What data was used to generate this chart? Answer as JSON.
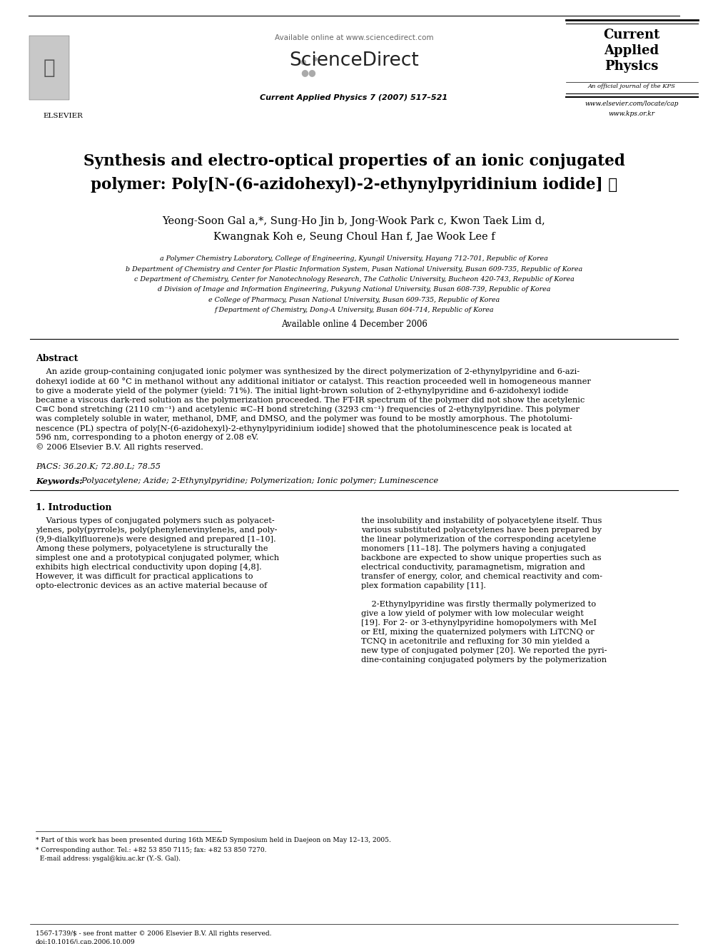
{
  "page_bg": "#ffffff",
  "available_online_header": "Available online at www.sciencedirect.com",
  "sciencedirect_text": "ScienceDirect",
  "journal_cite": "Current Applied Physics 7 (2007) 517–521",
  "journal_box_line1": "Current",
  "journal_box_line2": "Applied",
  "journal_box_line3": "Physics",
  "journal_box_subtitle": "An official journal of the KPS",
  "journal_box_url1": "www.elsevier.com/locate/cap",
  "journal_box_url2": "www.kps.or.kr",
  "elsevier_label": "ELSEVIER",
  "title_line1": "Synthesis and electro-optical properties of an ionic conjugated",
  "title_line2": "polymer: Poly[N-(6-azidohexyl)-2-ethynylpyridinium iodide] ☆",
  "authors_line1": "Yeong-Soon Gal a,*, Sung-Ho Jin b, Jong-Wook Park c, Kwon Taek Lim d,",
  "authors_line2": "Kwangnak Koh e, Seung Choul Han f, Jae Wook Lee f",
  "aff_a": "a Polymer Chemistry Laboratory, College of Engineering, Kyungil University, Hayang 712-701, Republic of Korea",
  "aff_b": "b Department of Chemistry and Center for Plastic Information System, Pusan National University, Busan 609-735, Republic of Korea",
  "aff_c": "c Department of Chemistry, Center for Nanotechnology Research, The Catholic University, Bucheon 420-743, Republic of Korea",
  "aff_d": "d Division of Image and Information Engineering, Pukyung National University, Busan 608-739, Republic of Korea",
  "aff_e": "e College of Pharmacy, Pusan National University, Busan 609-735, Republic of Korea",
  "aff_f": "f Department of Chemistry, Dong-A University, Busan 604-714, Republic of Korea",
  "available_date": "Available online 4 December 2006",
  "abstract_label": "Abstract",
  "abstract_lines": [
    "    An azide group-containing conjugated ionic polymer was synthesized by the direct polymerization of 2-ethynylpyridine and 6-azi-",
    "dohexyl iodide at 60 °C in methanol without any additional initiator or catalyst. This reaction proceeded well in homogeneous manner",
    "to give a moderate yield of the polymer (yield: 71%). The initial light-brown solution of 2-ethynylpyridine and 6-azidohexyl iodide",
    "became a viscous dark-red solution as the polymerization proceeded. The FT-IR spectrum of the polymer did not show the acetylenic",
    "C≡C bond stretching (2110 cm⁻¹) and acetylenic ≡C–H bond stretching (3293 cm⁻¹) frequencies of 2-ethynylpyridine. This polymer",
    "was completely soluble in water, methanol, DMF, and DMSO, and the polymer was found to be mostly amorphous. The photolumi-",
    "nescence (PL) spectra of poly[N-(6-azidohexyl)-2-ethynylpyridinium iodide] showed that the photoluminescence peak is located at",
    "596 nm, corresponding to a photon energy of 2.08 eV.",
    "© 2006 Elsevier B.V. All rights reserved."
  ],
  "pacs_line": "PACS: 36.20.K; 72.80.L; 78.55",
  "keywords_label": "Keywords:",
  "keywords_text": "  Polyacetylene; Azide; 2-Ethynylpyridine; Polymerization; Ionic polymer; Luminescence",
  "intro_title": "1. Introduction",
  "col1_lines": [
    "    Various types of conjugated polymers such as polyacet-",
    "ylenes, poly(pyrrole)s, poly(phenylenevinylene)s, and poly-",
    "(9,9-dialkylfluorene)s were designed and prepared [1–10].",
    "Among these polymers, polyacetylene is structurally the",
    "simplest one and a prototypical conjugated polymer, which",
    "exhibits high electrical conductivity upon doping [4,8].",
    "However, it was difficult for practical applications to",
    "opto-electronic devices as an active material because of"
  ],
  "col2_lines": [
    "the insolubility and instability of polyacetylene itself. Thus",
    "various substituted polyacetylenes have been prepared by",
    "the linear polymerization of the corresponding acetylene",
    "monomers [11–18]. The polymers having a conjugated",
    "backbone are expected to show unique properties such as",
    "electrical conductivity, paramagnetism, migration and",
    "transfer of energy, color, and chemical reactivity and com-",
    "plex formation capability [11].",
    "",
    "    2-Ethynylpyridine was firstly thermally polymerized to",
    "give a low yield of polymer with low molecular weight",
    "[19]. For 2- or 3-ethynylpyridine homopolymers with MeI",
    "or EtI, mixing the quaternized polymers with LiTCNQ or",
    "TCNQ in acetonitrile and refluxing for 30 min yielded a",
    "new type of conjugated polymer [20]. We reported the pyri-",
    "dine-containing conjugated polymers by the polymerization"
  ],
  "footnote1": "* Part of this work has been presented during 16th ME&D Symposium held in Daejeon on May 12–13, 2005.",
  "footnote2": "* Corresponding author. Tel.: +82 53 850 7115; fax: +82 53 850 7270.",
  "footnote3": "  E-mail address: ysgal@kiu.ac.kr (Y.-S. Gal).",
  "footer1": "1567-1739/$ - see front matter © 2006 Elsevier B.V. All rights reserved.",
  "footer2": "doi:10.1016/j.cap.2006.10.009"
}
